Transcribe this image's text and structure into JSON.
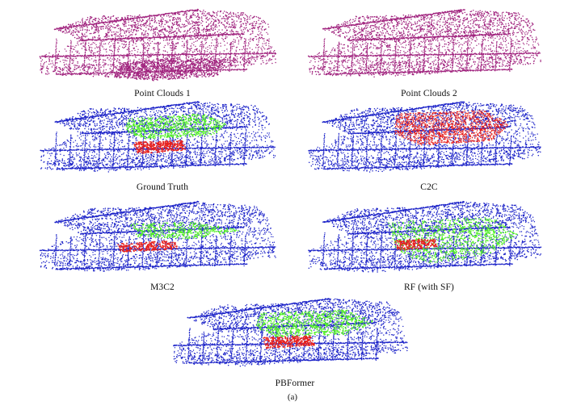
{
  "figure": {
    "sublabel": "(a)",
    "colors": {
      "raw": "#a0237e",
      "unchanged": "#1c23c8",
      "changed_green": "#52f026",
      "changed_red": "#e8201c"
    },
    "panels": [
      {
        "id": "pc1",
        "caption": "Point Clouds 1",
        "style": "raw"
      },
      {
        "id": "pc2",
        "caption": "Point Clouds 2",
        "style": "raw"
      },
      {
        "id": "gt",
        "caption": "Ground Truth",
        "style": "gt"
      },
      {
        "id": "c2c",
        "caption": "C2C",
        "style": "c2c"
      },
      {
        "id": "m3c2",
        "caption": "M3C2",
        "style": "m3c2"
      },
      {
        "id": "rf",
        "caption": "RF (with SF)",
        "style": "rf"
      },
      {
        "id": "pbformer",
        "caption": "PBFormer",
        "style": "pbformer"
      }
    ]
  }
}
